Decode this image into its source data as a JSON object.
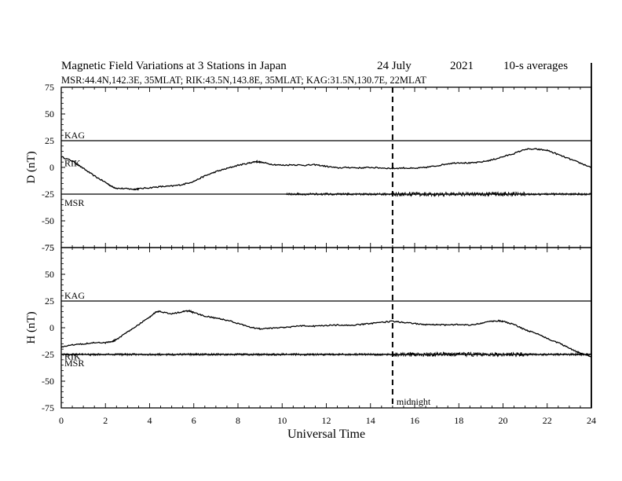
{
  "title": {
    "main": "Magnetic Field Variations at 3 Stations in Japan",
    "date": "24 July",
    "year": "2021",
    "averaging": "10-s averages"
  },
  "subtitle": "MSR:44.4N,142.3E, 35MLAT;  RIK:43.5N,143.8E, 35MLAT;  KAG:31.5N,130.7E, 22MLAT",
  "midnight_label": "midnight",
  "chart_data": [
    {
      "type": "line",
      "panel": "D",
      "ylabel": "D (nT)",
      "xlabel": "",
      "xlim": [
        0,
        24
      ],
      "ylim": [
        -75,
        75
      ],
      "yticks": [
        75,
        50,
        25,
        0,
        -25,
        -50,
        -75
      ],
      "grid": false,
      "baselines": [
        {
          "name": "KAG",
          "y": 25
        },
        {
          "name": "MSR",
          "y": -25
        }
      ],
      "series": [
        {
          "name": "RIK",
          "x": [
            0,
            0.5,
            1,
            1.5,
            2,
            2.3,
            2.5,
            3,
            3.3,
            3.5,
            4,
            4.5,
            5,
            5.5,
            6,
            6.5,
            7,
            7.5,
            8,
            8.5,
            8.8,
            9,
            9.5,
            10,
            10.5,
            11,
            11.5,
            12,
            12.5,
            13,
            13.5,
            14,
            14.5,
            15,
            15.5,
            16,
            16.5,
            17,
            17.5,
            18,
            18.5,
            19,
            19.5,
            20,
            20.5,
            21,
            21.5,
            22,
            22.5,
            23,
            23.5,
            24
          ],
          "y": [
            10,
            6,
            -1,
            -8,
            -14,
            -18,
            -19.5,
            -20,
            -20.5,
            -20,
            -19,
            -18,
            -17.5,
            -16,
            -13,
            -8,
            -4,
            -1,
            2,
            4,
            5.5,
            5,
            3,
            2,
            2.5,
            2,
            2.5,
            1,
            -0.5,
            0,
            -0.5,
            0,
            -0.5,
            -1,
            -0.5,
            -1,
            0,
            1.5,
            3.5,
            4.5,
            4,
            5,
            7,
            10,
            13,
            17,
            17,
            16,
            12,
            8,
            4,
            0
          ]
        },
        {
          "name": "MSR",
          "x": [
            10.2,
            24
          ],
          "y": [
            -25,
            -25
          ]
        }
      ]
    },
    {
      "type": "line",
      "panel": "H",
      "ylabel": "H (nT)",
      "xlabel": "Universal Time",
      "xlim": [
        0,
        24
      ],
      "ylim": [
        -75,
        75
      ],
      "xticks": [
        0,
        2,
        4,
        6,
        8,
        10,
        12,
        14,
        16,
        18,
        20,
        22,
        24
      ],
      "yticks": [
        75,
        50,
        25,
        0,
        -25,
        -50,
        -75
      ],
      "grid": false,
      "baselines": [
        {
          "name": "KAG",
          "y": 25
        },
        {
          "name": "MSR",
          "y": -25
        }
      ],
      "series": [
        {
          "name": "RIK",
          "x": [
            0,
            0.5,
            1,
            1.5,
            2,
            2.3,
            2.5,
            3,
            3.5,
            4,
            4.3,
            4.5,
            5,
            5.5,
            5.8,
            6,
            6.5,
            7,
            7.5,
            8,
            8.5,
            9,
            9.5,
            10,
            10.5,
            11,
            11.5,
            12,
            12.5,
            13,
            13.5,
            14,
            14.5,
            15,
            15.5,
            16,
            16.5,
            17,
            17.5,
            18,
            18.5,
            19,
            19.5,
            19.8,
            20,
            20.5,
            21,
            21.5,
            22,
            22.5,
            23,
            23.3,
            23.5,
            24
          ],
          "y": [
            -18,
            -16,
            -15,
            -14,
            -14,
            -13,
            -11,
            -4,
            3,
            10,
            15,
            15,
            13,
            15,
            16,
            14,
            11,
            9,
            7,
            4,
            1,
            -1,
            -0.5,
            0,
            1,
            2,
            1.5,
            2,
            2.5,
            2,
            3,
            4,
            5,
            6,
            5,
            4,
            3,
            3,
            2.5,
            3,
            2.5,
            4,
            6,
            6.5,
            6,
            3,
            -2,
            -5,
            -10,
            -14,
            -19,
            -22,
            -24,
            -27
          ]
        },
        {
          "name": "MSR",
          "x": [
            0,
            24
          ],
          "y": [
            -25,
            -25
          ]
        }
      ]
    }
  ]
}
